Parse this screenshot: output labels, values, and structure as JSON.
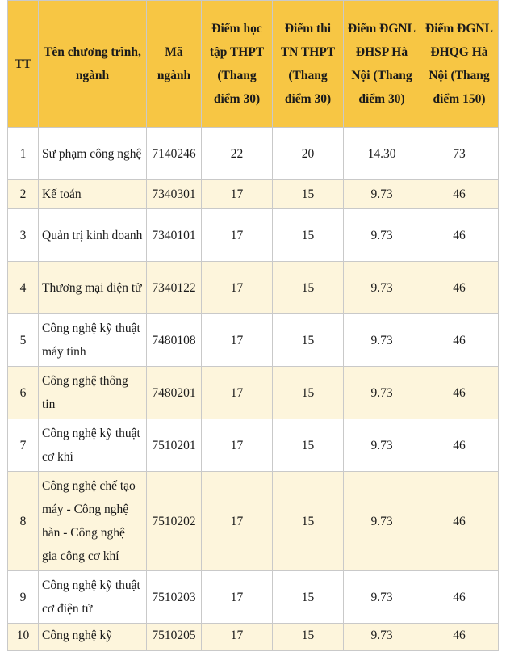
{
  "headers": {
    "tt": "TT",
    "program": "Tên chương trình, ngành",
    "code": "Mã ngành",
    "thpt_study": "Điểm học tập THPT (Thang điểm 30)",
    "tn_thpt": "Điểm thi TN THPT (Thang điểm 30)",
    "dhsp": "Điểm ĐGNL ĐHSP Hà Nội (Thang điểm 30)",
    "dhqg": "Điểm ĐGNL ĐHQG Hà Nội (Thang điểm 150)"
  },
  "rows": [
    {
      "tt": "1",
      "name": "Sư phạm công nghệ",
      "code": "7140246",
      "study": "22",
      "tn": "20",
      "dhsp": "14.30",
      "dhqg": "73"
    },
    {
      "tt": "2",
      "name": "Kế toán",
      "code": "7340301",
      "study": "17",
      "tn": "15",
      "dhsp": "9.73",
      "dhqg": "46"
    },
    {
      "tt": "3",
      "name": "Quản trị kinh doanh",
      "code": "7340101",
      "study": "17",
      "tn": "15",
      "dhsp": "9.73",
      "dhqg": "46"
    },
    {
      "tt": "4",
      "name": "Thương mại điện tử",
      "code": "7340122",
      "study": "17",
      "tn": "15",
      "dhsp": "9.73",
      "dhqg": "46"
    },
    {
      "tt": "5",
      "name": "Công nghệ kỹ thuật máy tính",
      "code": "7480108",
      "study": "17",
      "tn": "15",
      "dhsp": "9.73",
      "dhqg": "46"
    },
    {
      "tt": "6",
      "name": "Công nghệ thông tin",
      "code": "7480201",
      "study": "17",
      "tn": "15",
      "dhsp": "9.73",
      "dhqg": "46"
    },
    {
      "tt": "7",
      "name": "Công nghệ kỹ thuật cơ khí",
      "code": "7510201",
      "study": "17",
      "tn": "15",
      "dhsp": "9.73",
      "dhqg": "46"
    },
    {
      "tt": "8",
      "name": "Công nghệ chế tạo máy - Công nghệ hàn - Công nghệ gia công cơ khí",
      "code": "7510202",
      "study": "17",
      "tn": "15",
      "dhsp": "9.73",
      "dhqg": "46"
    },
    {
      "tt": "9",
      "name": "Công nghệ kỹ thuật cơ điện tử",
      "code": "7510203",
      "study": "17",
      "tn": "15",
      "dhsp": "9.73",
      "dhqg": "46"
    },
    {
      "tt": "10",
      "name": "Công nghệ kỹ",
      "code": "7510205",
      "study": "17",
      "tn": "15",
      "dhsp": "9.73",
      "dhqg": "46"
    }
  ]
}
